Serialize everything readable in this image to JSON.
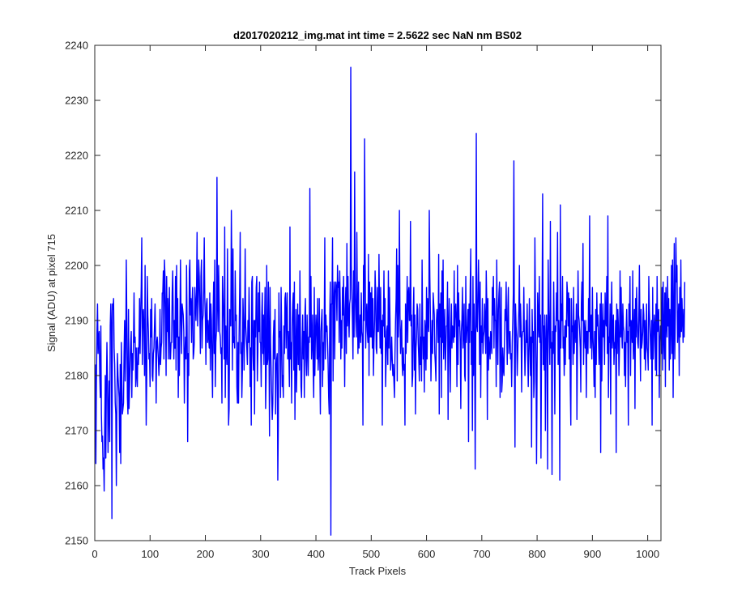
{
  "chart_data": {
    "type": "line",
    "title": "d2017020212_img.mat int time = 2.5622 sec  NaN nm BS02",
    "xlabel": "Track Pixels",
    "ylabel": "Signal (ADU) at pixel 715",
    "xlim": [
      0,
      1024
    ],
    "ylim": [
      2150,
      2240
    ],
    "xticks": [
      0,
      100,
      200,
      300,
      400,
      500,
      600,
      700,
      800,
      900,
      1000
    ],
    "yticks": [
      2150,
      2160,
      2170,
      2180,
      2190,
      2200,
      2210,
      2220,
      2230,
      2240
    ],
    "grid": false,
    "line_color": "#0000ff",
    "series": [
      {
        "x_start": 1,
        "x_step": 1,
        "values": [
          2182,
          2164,
          2179,
          2188,
          2193,
          2184,
          2187,
          2188,
          2180,
          2176,
          2189,
          2173,
          2168,
          2169,
          2163,
          2165,
          2159,
          2171,
          2180,
          2165,
          2178,
          2186,
          2179,
          2166,
          2174,
          2179,
          2168,
          2189,
          2193,
          2189,
          2154,
          2193,
          2192,
          2194,
          2185,
          2182,
          2175,
          2173,
          2160,
          2175,
          2184,
          2180,
          2178,
          2176,
          2166,
          2182,
          2164,
          2186,
          2179,
          2173,
          2174,
          2175,
          2184,
          2190,
          2179,
          2185,
          2201,
          2190,
          2176,
          2173,
          2192,
          2174,
          2178,
          2183,
          2186,
          2188,
          2176,
          2184,
          2181,
          2186,
          2195,
          2186,
          2187,
          2178,
          2185,
          2180,
          2178,
          2185,
          2182,
          2186,
          2194,
          2184,
          2191,
          2196,
          2205,
          2182,
          2191,
          2192,
          2188,
          2180,
          2200,
          2185,
          2171,
          2180,
          2198,
          2191,
          2188,
          2183,
          2184,
          2178,
          2192,
          2187,
          2194,
          2180,
          2179,
          2184,
          2185,
          2189,
          2193,
          2187,
          2175,
          2186,
          2187,
          2185,
          2183,
          2180,
          2183,
          2192,
          2182,
          2185,
          2186,
          2195,
          2195,
          2199,
          2183,
          2201,
          2198,
          2191,
          2180,
          2198,
          2188,
          2194,
          2183,
          2191,
          2196,
          2183,
          2183,
          2186,
          2186,
          2195,
          2199,
          2190,
          2183,
          2190,
          2185,
          2198,
          2181,
          2200,
          2187,
          2194,
          2176,
          2187,
          2180,
          2189,
          2201,
          2191,
          2184,
          2193,
          2192,
          2191,
          2188,
          2175,
          2184,
          2187,
          2183,
          2200,
          2189,
          2168,
          2184,
          2180,
          2199,
          2201,
          2191,
          2194,
          2186,
          2193,
          2196,
          2183,
          2184,
          2186,
          2196,
          2193,
          2190,
          2195,
          2206,
          2189,
          2193,
          2201,
          2198,
          2192,
          2184,
          2198,
          2201,
          2185,
          2190,
          2191,
          2196,
          2205,
          2194,
          2190,
          2182,
          2193,
          2194,
          2186,
          2190,
          2187,
          2185,
          2195,
          2181,
          2193,
          2190,
          2182,
          2176,
          2191,
          2197,
          2184,
          2201,
          2178,
          2186,
          2188,
          2216,
          2193,
          2188,
          2200,
          2194,
          2188,
          2187,
          2184,
          2185,
          2175,
          2198,
          2194,
          2190,
          2183,
          2207,
          2176,
          2189,
          2185,
          2182,
          2203,
          2187,
          2171,
          2174,
          2192,
          2191,
          2189,
          2210,
          2198,
          2181,
          2203,
          2186,
          2187,
          2185,
          2199,
          2190,
          2191,
          2178,
          2175,
          2186,
          2175,
          2187,
          2195,
          2206,
          2184,
          2186,
          2176,
          2181,
          2194,
          2190,
          2181,
          2188,
          2203,
          2189,
          2187,
          2185,
          2182,
          2190,
          2186,
          2196,
          2189,
          2178,
          2185,
          2171,
          2197,
          2198,
          2184,
          2181,
          2190,
          2173,
          2190,
          2187,
          2196,
          2198,
          2179,
          2184,
          2195,
          2188,
          2197,
          2186,
          2186,
          2178,
          2191,
          2195,
          2184,
          2191,
          2182,
          2189,
          2196,
          2174,
          2180,
          2200,
          2182,
          2183,
          2197,
          2187,
          2169,
          2196,
          2186,
          2181,
          2176,
          2172,
          2175,
          2187,
          2190,
          2183,
          2192,
          2173,
          2181,
          2183,
          2184,
          2161,
          2171,
          2195,
          2187,
          2188,
          2176,
          2196,
          2188,
          2178,
          2180,
          2176,
          2189,
          2184,
          2194,
          2195,
          2185,
          2191,
          2195,
          2183,
          2188,
          2184,
          2178,
          2207,
          2183,
          2186,
          2175,
          2189,
          2193,
          2195,
          2181,
          2197,
          2172,
          2183,
          2192,
          2177,
          2186,
          2193,
          2182,
          2191,
          2181,
          2199,
          2187,
          2178,
          2176,
          2186,
          2191,
          2183,
          2188,
          2176,
          2191,
          2194,
          2183,
          2180,
          2191,
          2185,
          2180,
          2187,
          2186,
          2214,
          2187,
          2198,
          2183,
          2186,
          2191,
          2181,
          2176,
          2196,
          2180,
          2187,
          2191,
          2188,
          2183,
          2194,
          2181,
          2184,
          2194,
          2182,
          2173,
          2188,
          2190,
          2192,
          2178,
          2186,
          2181,
          2189,
          2205,
          2183,
          2191,
          2188,
          2189,
          2186,
          2182,
          2176,
          2173,
          2191,
          2197,
          2151,
          2193,
          2193,
          2205,
          2179,
          2192,
          2197,
          2183,
          2195,
          2197,
          2196,
          2190,
          2200,
          2196,
          2197,
          2186,
          2199,
          2193,
          2183,
          2190,
          2185,
          2196,
          2191,
          2198,
          2189,
          2178,
          2192,
          2196,
          2184,
          2204,
          2189,
          2198,
          2191,
          2187,
          2193,
          2194,
          2236,
          2200,
          2195,
          2190,
          2183,
          2199,
          2187,
          2217,
          2195,
          2190,
          2187,
          2206,
          2192,
          2184,
          2197,
          2185,
          2188,
          2191,
          2186,
          2195,
          2188,
          2187,
          2171,
          2200,
          2190,
          2223,
          2202,
          2185,
          2191,
          2193,
          2188,
          2186,
          2202,
          2180,
          2197,
          2187,
          2195,
          2187,
          2196,
          2185,
          2194,
          2180,
          2186,
          2190,
          2199,
          2195,
          2185,
          2184,
          2196,
          2188,
          2188,
          2202,
          2192,
          2185,
          2196,
          2184,
          2190,
          2171,
          2191,
          2189,
          2199,
          2187,
          2194,
          2178,
          2183,
          2188,
          2189,
          2182,
          2199,
          2185,
          2196,
          2190,
          2181,
          2183,
          2187,
          2183,
          2180,
          2182,
          2179,
          2176,
          2184,
          2190,
          2194,
          2203,
          2179,
          2200,
          2187,
          2192,
          2210,
          2191,
          2184,
          2187,
          2190,
          2182,
          2180,
          2185,
          2181,
          2182,
          2171,
          2193,
          2184,
          2190,
          2198,
          2186,
          2195,
          2196,
          2190,
          2190,
          2208,
          2189,
          2191,
          2178,
          2180,
          2191,
          2196,
          2181,
          2191,
          2173,
          2185,
          2187,
          2193,
          2192,
          2186,
          2183,
          2179,
          2193,
          2182,
          2187,
          2179,
          2201,
          2189,
          2183,
          2187,
          2177,
          2190,
          2188,
          2181,
          2196,
          2183,
          2194,
          2190,
          2188,
          2210,
          2198,
          2191,
          2179,
          2185,
          2190,
          2184,
          2195,
          2193,
          2191,
          2184,
          2182,
          2179,
          2190,
          2192,
          2190,
          2186,
          2202,
          2173,
          2193,
          2187,
          2195,
          2176,
          2199,
          2186,
          2201,
          2183,
          2187,
          2192,
          2181,
          2185,
          2189,
          2189,
          2197,
          2172,
          2189,
          2194,
          2184,
          2177,
          2188,
          2193,
          2185,
          2189,
          2188,
          2186,
          2199,
          2187,
          2192,
          2193,
          2190,
          2178,
          2200,
          2182,
          2195,
          2189,
          2190,
          2186,
          2174,
          2188,
          2190,
          2196,
          2185,
          2188,
          2193,
          2180,
          2179,
          2198,
          2186,
          2188,
          2189,
          2192,
          2168,
          2193,
          2186,
          2196,
          2203,
          2182,
          2188,
          2170,
          2198,
          2180,
          2193,
          2188,
          2163,
          2185,
          2224,
          2189,
          2188,
          2194,
          2201,
          2193,
          2182,
          2197,
          2176,
          2189,
          2186,
          2194,
          2184,
          2187,
          2188,
          2193,
          2190,
          2184,
          2199,
          2193,
          2172,
          2194,
          2181,
          2187,
          2185,
          2183,
          2188,
          2186,
          2184,
          2196,
          2191,
          2198,
          2185,
          2194,
          2190,
          2190,
          2178,
          2201,
          2189,
          2182,
          2192,
          2195,
          2197,
          2176,
          2187,
          2196,
          2177,
          2179,
          2185,
          2181,
          2180,
          2186,
          2192,
          2190,
          2197,
          2188,
          2182,
          2192,
          2196,
          2184,
          2187,
          2188,
          2183,
          2184,
          2178,
          2186,
          2190,
          2195,
          2219,
          2184,
          2167,
          2193,
          2189,
          2187,
          2180,
          2184,
          2189,
          2192,
          2200,
          2187,
          2193,
          2189,
          2177,
          2187,
          2188,
          2188,
          2196,
          2187,
          2180,
          2184,
          2190,
          2186,
          2193,
          2184,
          2178,
          2185,
          2194,
          2186,
          2180,
          2187,
          2167,
          2192,
          2186,
          2188,
          2176,
          2179,
          2205,
          2192,
          2182,
          2164,
          2181,
          2195,
          2190,
          2187,
          2198,
          2186,
          2191,
          2165,
          2184,
          2192,
          2213,
          2182,
          2189,
          2181,
          2191,
          2170,
          2185,
          2191,
          2186,
          2163,
          2201,
          2192,
          2187,
          2182,
          2208,
          2185,
          2186,
          2162,
          2188,
          2184,
          2197,
          2187,
          2173,
          2189,
          2188,
          2195,
          2190,
          2206,
          2182,
          2190,
          2186,
          2161,
          2211,
          2185,
          2193,
          2190,
          2198,
          2185,
          2187,
          2180,
          2189,
          2182,
          2190,
          2187,
          2197,
          2195,
          2189,
          2195,
          2183,
          2194,
          2178,
          2171,
          2194,
          2188,
          2189,
          2182,
          2196,
          2184,
          2188,
          2190,
          2186,
          2193,
          2172,
          2185,
          2199,
          2191,
          2190,
          2188,
          2185,
          2177,
          2193,
          2197,
          2190,
          2204,
          2182,
          2190,
          2188,
          2185,
          2190,
          2176,
          2188,
          2188,
          2184,
          2194,
          2188,
          2209,
          2185,
          2189,
          2191,
          2183,
          2196,
          2187,
          2184,
          2178,
          2188,
          2176,
          2192,
          2182,
          2195,
          2189,
          2191,
          2187,
          2182,
          2186,
          2193,
          2166,
          2195,
          2179,
          2188,
          2193,
          2187,
          2190,
          2182,
          2195,
          2190,
          2189,
          2198,
          2184,
          2209,
          2176,
          2187,
          2186,
          2193,
          2173,
          2190,
          2197,
          2185,
          2188,
          2191,
          2182,
          2186,
          2185,
          2190,
          2166,
          2193,
          2184,
          2192,
          2189,
          2180,
          2185,
          2199,
          2187,
          2196,
          2188,
          2185,
          2193,
          2189,
          2188,
          2180,
          2186,
          2178,
          2188,
          2192,
          2186,
          2188,
          2171,
          2193,
          2189,
          2198,
          2180,
          2190,
          2189,
          2186,
          2199,
          2183,
          2187,
          2192,
          2174,
          2194,
          2187,
          2196,
          2190,
          2186,
          2185,
          2191,
          2200,
          2189,
          2179,
          2192,
          2185,
          2186,
          2188,
          2193,
          2191,
          2183,
          2190,
          2181,
          2187,
          2193,
          2185,
          2184,
          2181,
          2198,
          2192,
          2189,
          2186,
          2183,
          2190,
          2171,
          2196,
          2183,
          2187,
          2191,
          2189,
          2181,
          2193,
          2180,
          2198,
          2188,
          2190,
          2192,
          2176,
          2186,
          2189,
          2188,
          2184,
          2196,
          2181,
          2197,
          2187,
          2183,
          2195,
          2178,
          2196,
          2190,
          2187,
          2198,
          2189,
          2194,
          2181,
          2192,
          2183,
          2189,
          2200,
          2184,
          2201,
          2176,
          2190,
          2204,
          2183,
          2191,
          2205,
          2197,
          2200,
          2186,
          2189,
          2193,
          2180,
          2196,
          2187,
          2201,
          2188,
          2194,
          2190,
          2186,
          2192,
          2187,
          2197
        ]
      }
    ]
  }
}
